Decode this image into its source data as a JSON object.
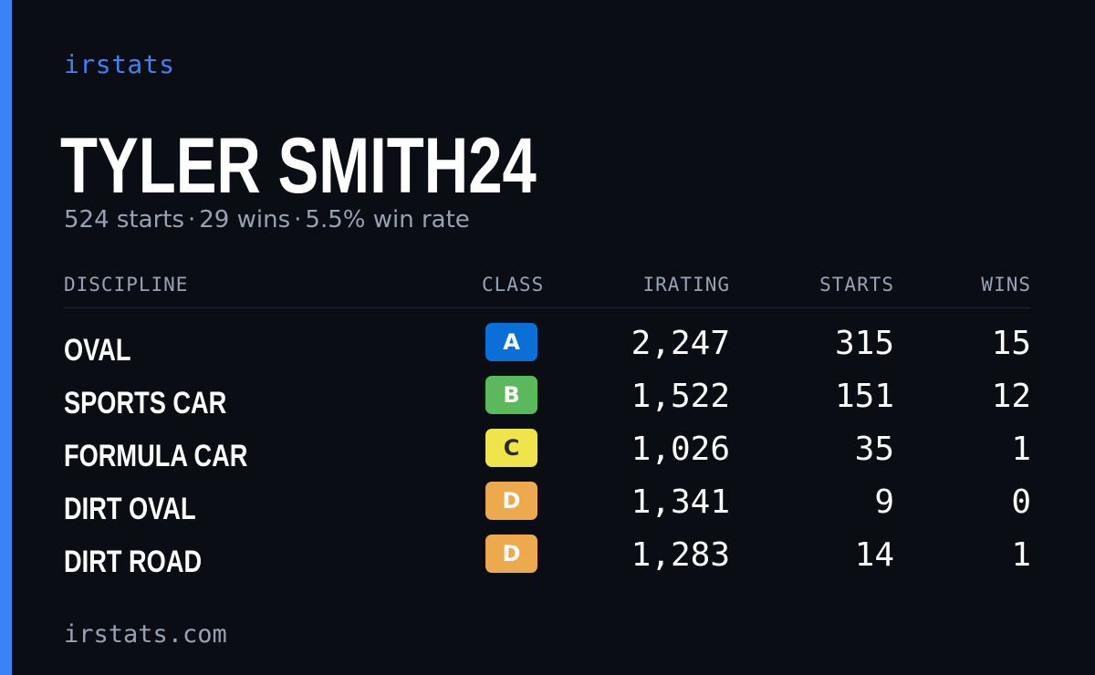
{
  "brand": "irstats",
  "player": {
    "name": "TYLER SMITH24"
  },
  "summary": {
    "starts": "524 starts",
    "wins": "29 wins",
    "win_rate": "5.5% win rate",
    "separator": "·"
  },
  "table": {
    "headers": {
      "discipline": "DISCIPLINE",
      "class": "CLASS",
      "irating": "IRATING",
      "starts": "STARTS",
      "wins": "WINS"
    },
    "rows": [
      {
        "discipline": "OVAL",
        "class": "A",
        "class_color": "#0b6fd8",
        "class_text_color": "#ffffff",
        "irating": "2,247",
        "starts": "315",
        "wins": "15"
      },
      {
        "discipline": "SPORTS CAR",
        "class": "B",
        "class_color": "#5cb85c",
        "class_text_color": "#ffffff",
        "irating": "1,522",
        "starts": "151",
        "wins": "12"
      },
      {
        "discipline": "FORMULA CAR",
        "class": "C",
        "class_color": "#efe44a",
        "class_text_color": "#2a2a2a",
        "irating": "1,026",
        "starts": "35",
        "wins": "1"
      },
      {
        "discipline": "DIRT OVAL",
        "class": "D",
        "class_color": "#eca94d",
        "class_text_color": "#ffffff",
        "irating": "1,341",
        "starts": "9",
        "wins": "0"
      },
      {
        "discipline": "DIRT ROAD",
        "class": "D",
        "class_color": "#eca94d",
        "class_text_color": "#ffffff",
        "irating": "1,283",
        "starts": "14",
        "wins": "1"
      }
    ]
  },
  "footer": "irstats.com",
  "colors": {
    "accent": "#3b82f6",
    "background": "#0a0d14",
    "muted_text": "#98a2b3"
  }
}
